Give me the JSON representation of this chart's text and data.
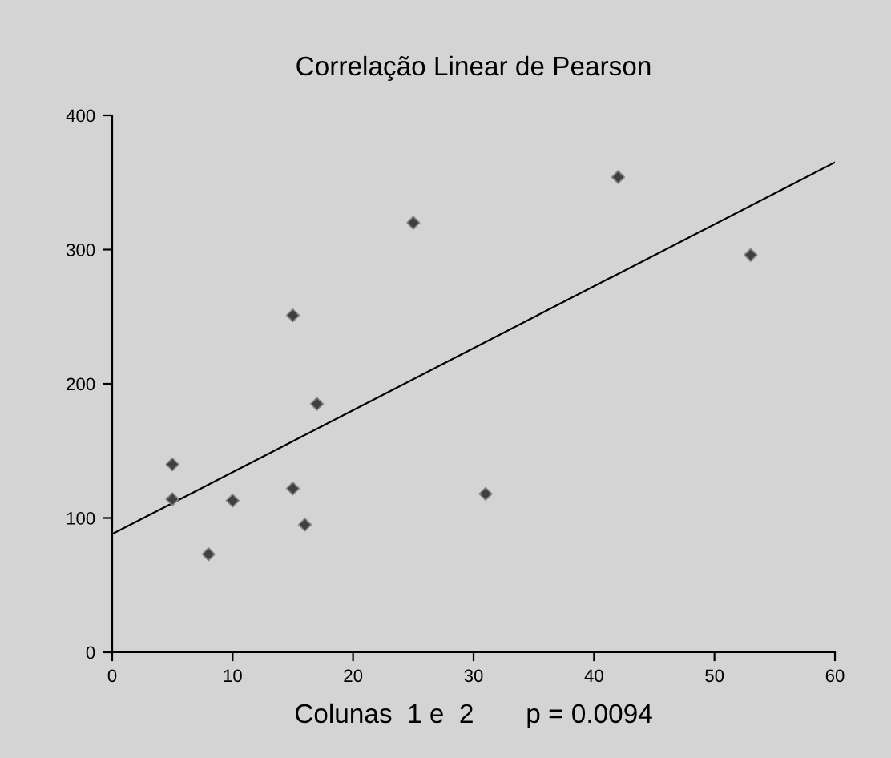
{
  "chart_data": {
    "type": "scatter",
    "title": "Correlação Linear de Pearson",
    "xlabel": "Colunas  1 e  2       p = 0.0094",
    "series": [
      {
        "color": "#404040",
        "marker": "diamond",
        "x": [
          5,
          5,
          8,
          10,
          15,
          15,
          16,
          17,
          25,
          31,
          42,
          53
        ],
        "values": [
          140,
          114,
          73,
          113,
          251,
          122,
          95,
          185,
          320,
          118,
          354,
          296
        ]
      },
      {
        "type": "line",
        "color": "#000000",
        "marker": "none",
        "x": [
          0,
          60
        ],
        "values": [
          88,
          365
        ]
      }
    ],
    "xlim": [
      0,
      60
    ],
    "xticks": [
      0,
      10,
      20,
      30,
      40,
      50,
      60
    ],
    "ylim": [
      0,
      400
    ],
    "yticks": [
      0,
      100,
      200,
      300,
      400
    ],
    "grid": false,
    "legend": false
  }
}
